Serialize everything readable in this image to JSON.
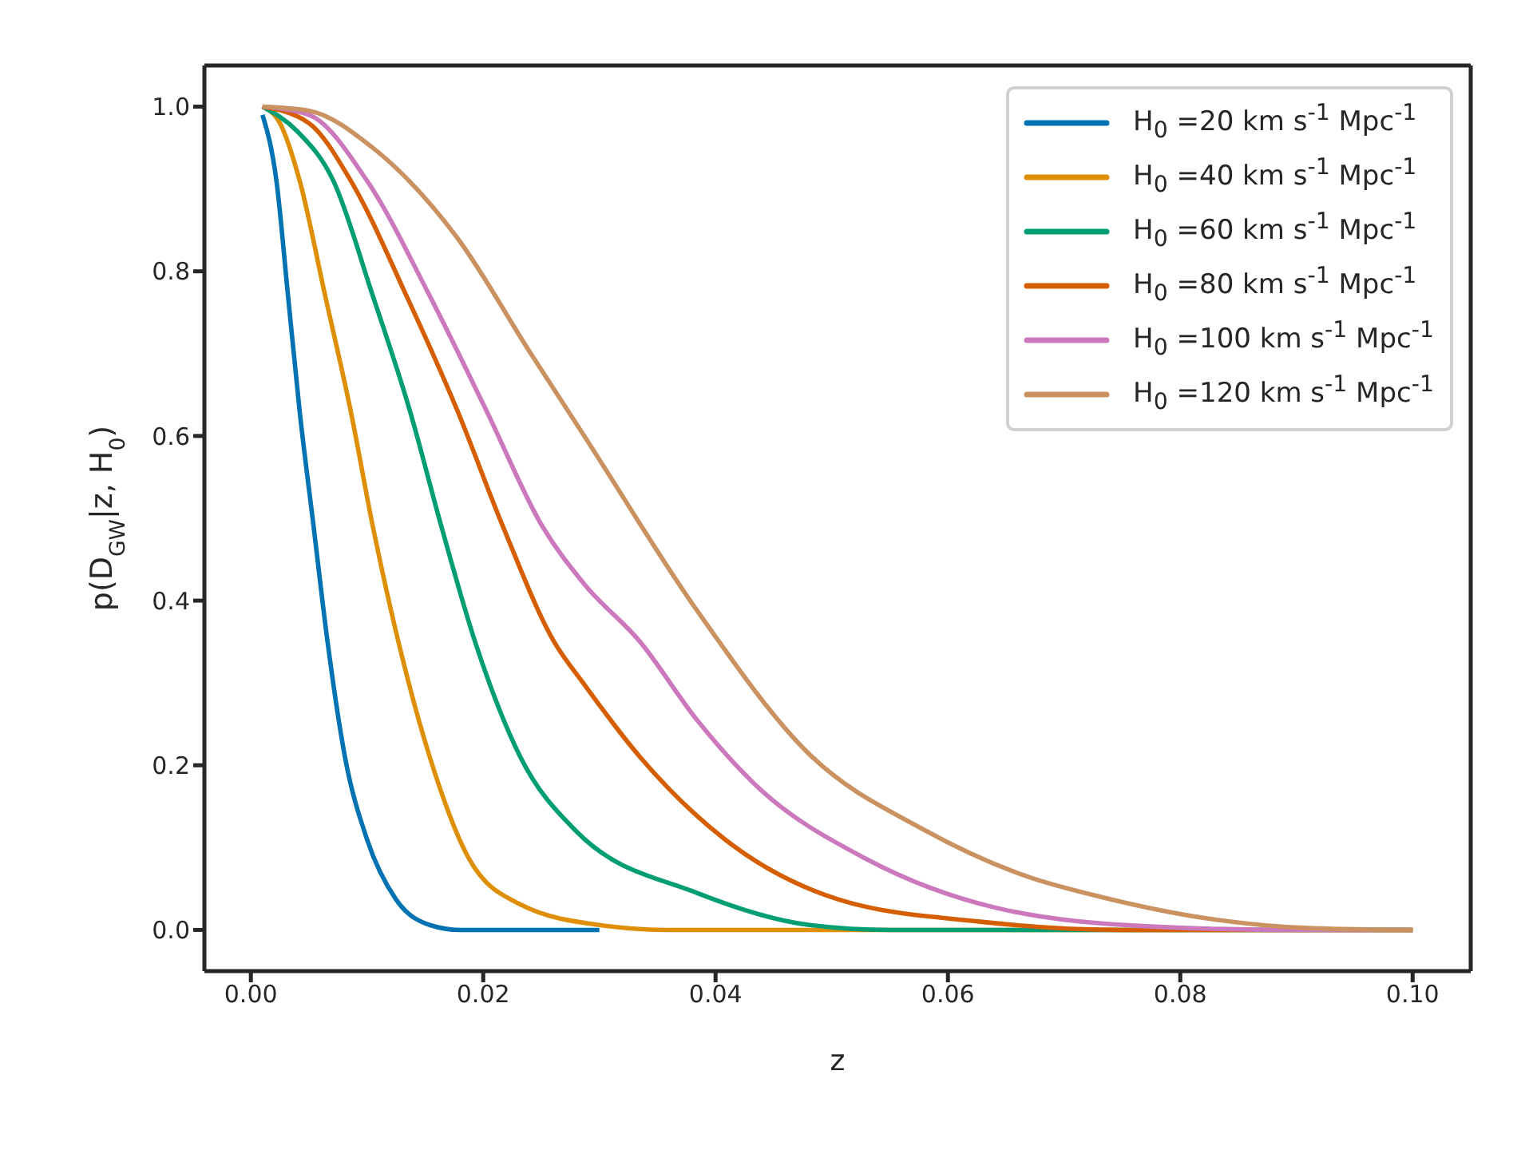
{
  "chart_data": {
    "type": "line",
    "xlabel": "z",
    "ylabel": "p(D$_{GW}$|z, H$_{0}$)",
    "xlim": [
      -0.004,
      0.105
    ],
    "ylim": [
      -0.05,
      1.05
    ],
    "xticks": [
      {
        "value": 0,
        "label": "0.00"
      },
      {
        "value": 0.02,
        "label": "0.02"
      },
      {
        "value": 0.04,
        "label": "0.04"
      },
      {
        "value": 0.06,
        "label": "0.06"
      },
      {
        "value": 0.08,
        "label": "0.08"
      },
      {
        "value": 0.1,
        "label": "0.10"
      }
    ],
    "yticks": [
      {
        "value": 0,
        "label": "0.0"
      },
      {
        "value": 0.2,
        "label": "0.2"
      },
      {
        "value": 0.4,
        "label": "0.4"
      },
      {
        "value": 0.6,
        "label": "0.6"
      },
      {
        "value": 0.8,
        "label": "0.8"
      },
      {
        "value": 1,
        "label": "1.0"
      }
    ],
    "grid": false,
    "legend": "top right",
    "line_style": "solid",
    "series": [
      {
        "name": "H$_{0}$ =20 km s$^{-1}$ Mpc$^{-1}$",
        "color": "#0173b2",
        "x": [
          0.001,
          0.0022,
          0.0032,
          0.0042,
          0.0054,
          0.0066,
          0.0081,
          0.01,
          0.0125,
          0.0154,
          0.018,
          0.025,
          0.03
        ],
        "values": [
          0.99,
          0.91,
          0.77,
          0.63,
          0.49,
          0.35,
          0.21,
          0.11,
          0.037,
          0.006,
          0,
          0,
          0
        ]
      },
      {
        "name": "H$_{0}$ =40 km s$^{-1}$ Mpc$^{-1}$",
        "color": "#de8f05",
        "x": [
          0.001,
          0.0025,
          0.0042,
          0.0064,
          0.0086,
          0.0105,
          0.0127,
          0.0154,
          0.0188,
          0.0232,
          0.03,
          0.036,
          0.05,
          0.07,
          0.1
        ],
        "values": [
          1,
          0.98,
          0.91,
          0.77,
          0.63,
          0.49,
          0.35,
          0.21,
          0.086,
          0.031,
          0.006,
          0,
          0,
          0,
          0
        ]
      },
      {
        "name": "H$_{0}$ =60 km s$^{-1}$ Mpc$^{-1}$",
        "color": "#029e73",
        "x": [
          0.001,
          0.004,
          0.0071,
          0.0105,
          0.0137,
          0.0164,
          0.0193,
          0.0232,
          0.028,
          0.0384,
          0.0481,
          0.055,
          0.07,
          0.1
        ],
        "values": [
          1,
          0.97,
          0.91,
          0.77,
          0.63,
          0.49,
          0.35,
          0.21,
          0.12,
          0.045,
          0.006,
          0,
          0,
          0
        ]
      },
      {
        "name": "H$_{0}$ =80 km s$^{-1}$ Mpc$^{-1}$",
        "color": "#d55e00",
        "x": [
          0.001,
          0.005,
          0.0086,
          0.0134,
          0.0178,
          0.0217,
          0.0261,
          0.0286,
          0.0335,
          0.0408,
          0.0506,
          0.0628,
          0.075,
          0.1
        ],
        "values": [
          1,
          0.98,
          0.91,
          0.77,
          0.63,
          0.49,
          0.35,
          0.3,
          0.21,
          0.11,
          0.037,
          0.01,
          0,
          0
        ]
      },
      {
        "name": "H$_{0}$ =100 km s$^{-1}$ Mpc$^{-1}$",
        "color": "#cc78bc",
        "x": [
          0.001,
          0.005,
          0.01,
          0.0154,
          0.0203,
          0.0251,
          0.0287,
          0.0335,
          0.0384,
          0.0433,
          0.053,
          0.0641,
          0.0778,
          0.09,
          0.1
        ],
        "values": [
          1,
          0.99,
          0.91,
          0.77,
          0.63,
          0.49,
          0.42,
          0.35,
          0.255,
          0.178,
          0.086,
          0.027,
          0.004,
          0,
          0
        ]
      },
      {
        "name": "H$_{0}$ =120 km s$^{-1}$ Mpc$^{-1}$",
        "color": "#ca9161",
        "x": [
          0.001,
          0.005,
          0.0105,
          0.0178,
          0.0241,
          0.0287,
          0.0384,
          0.0481,
          0.0579,
          0.0668,
          0.0732,
          0.0823,
          0.0914,
          0.1
        ],
        "values": [
          1,
          0.995,
          0.95,
          0.84,
          0.7,
          0.6,
          0.388,
          0.213,
          0.122,
          0.065,
          0.04,
          0.014,
          0.002,
          0
        ]
      }
    ]
  }
}
